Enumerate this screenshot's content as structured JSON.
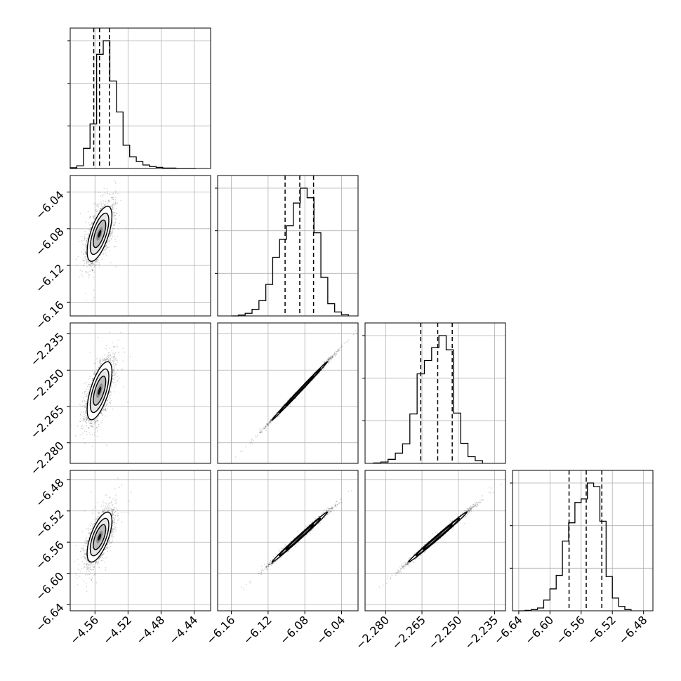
{
  "chart_data": {
    "type": "corner",
    "parameter_count": 4,
    "grid": true,
    "axes": [
      {
        "range": [
          -4.59,
          -4.42
        ],
        "ticks": [
          -4.56,
          -4.52,
          -4.48,
          -4.44
        ],
        "tick_labels": [
          "−4.56",
          "−4.52",
          "−4.48",
          "−4.44"
        ]
      },
      {
        "range": [
          -6.175,
          -6.022
        ],
        "ticks": [
          -6.16,
          -6.12,
          -6.08,
          -6.04
        ],
        "tick_labels": [
          "−6.16",
          "−6.12",
          "−6.08",
          "−6.04"
        ]
      },
      {
        "range": [
          -2.2885,
          -2.2305
        ],
        "ticks": [
          -2.28,
          -2.265,
          -2.25,
          -2.235
        ],
        "tick_labels": [
          "−2.280",
          "−2.265",
          "−2.250",
          "−2.235"
        ]
      },
      {
        "range": [
          -6.648,
          -6.468
        ],
        "ticks": [
          -6.64,
          -6.6,
          -6.56,
          -6.52,
          -6.48
        ],
        "tick_labels": [
          "−6.64",
          "−6.60",
          "−6.56",
          "−6.52",
          "−6.48"
        ]
      }
    ],
    "quantiles": [
      [
        -4.5615,
        -4.5545,
        -4.5425
      ],
      [
        -6.1015,
        -6.0855,
        -6.0705
      ],
      [
        -2.2655,
        -2.2585,
        -2.2525
      ],
      [
        -6.5755,
        -6.5535,
        -6.5335
      ]
    ],
    "histograms": [
      {
        "edges": [
          -4.59,
          -4.582,
          -4.574,
          -4.566,
          -4.558,
          -4.55,
          -4.542,
          -4.534,
          -4.526,
          -4.518,
          -4.51,
          -4.502,
          -4.494,
          -4.486,
          -4.478,
          -4.47,
          -4.462,
          -4.454,
          -4.446,
          -4.438
        ],
        "counts": [
          2,
          7,
          52,
          115,
          295,
          330,
          226,
          146,
          60,
          30,
          18,
          9,
          5,
          3,
          1,
          1,
          0,
          0,
          0
        ]
      },
      {
        "edges": [
          -6.16,
          -6.1525,
          -6.145,
          -6.1375,
          -6.13,
          -6.1225,
          -6.115,
          -6.1075,
          -6.1,
          -6.0925,
          -6.085,
          -6.0775,
          -6.07,
          -6.0625,
          -6.055,
          -6.0475,
          -6.04,
          -6.0325
        ],
        "counts": [
          0,
          2,
          6,
          15,
          35,
          72,
          134,
          175,
          206,
          258,
          292,
          270,
          190,
          88,
          28,
          9,
          3
        ]
      },
      {
        "edges": [
          -2.285,
          -2.282,
          -2.279,
          -2.276,
          -2.273,
          -2.27,
          -2.267,
          -2.264,
          -2.261,
          -2.258,
          -2.255,
          -2.252,
          -2.249,
          -2.246,
          -2.243,
          -2.24
        ],
        "counts": [
          1,
          3,
          9,
          23,
          44,
          111,
          201,
          231,
          260,
          287,
          255,
          113,
          45,
          15,
          6
        ]
      },
      {
        "edges": [
          -6.64,
          -6.632,
          -6.624,
          -6.616,
          -6.608,
          -6.6,
          -6.592,
          -6.584,
          -6.576,
          -6.568,
          -6.56,
          -6.552,
          -6.544,
          -6.536,
          -6.528,
          -6.52,
          -6.512,
          -6.504,
          -6.496
        ],
        "counts": [
          0,
          1,
          3,
          7,
          27,
          55,
          89,
          175,
          221,
          272,
          281,
          321,
          312,
          225,
          86,
          32,
          11,
          3
        ]
      }
    ],
    "joint_distributions": [
      {
        "x_param": 0,
        "y_param": 1,
        "center": [
          -4.5545,
          -6.0855
        ],
        "sd_x": 0.0075,
        "sd_y": 0.015,
        "correlation": 0.65
      },
      {
        "x_param": 0,
        "y_param": 2,
        "center": [
          -4.5545,
          -2.2585
        ],
        "sd_x": 0.0075,
        "sd_y": 0.006,
        "correlation": 0.65
      },
      {
        "x_param": 0,
        "y_param": 3,
        "center": [
          -4.5545,
          -6.5535
        ],
        "sd_x": 0.0075,
        "sd_y": 0.016,
        "correlation": 0.65
      },
      {
        "x_param": 1,
        "y_param": 2,
        "center": [
          -6.0855,
          -2.2585
        ],
        "sd_x": 0.015,
        "sd_y": 0.006,
        "correlation": 0.998
      },
      {
        "x_param": 1,
        "y_param": 3,
        "center": [
          -6.0855,
          -6.5535
        ],
        "sd_x": 0.015,
        "sd_y": 0.016,
        "correlation": 0.995
      },
      {
        "x_param": 2,
        "y_param": 3,
        "center": [
          -2.2585,
          -6.5535
        ],
        "sd_x": 0.006,
        "sd_y": 0.016,
        "correlation": 0.995
      }
    ],
    "contour_levels_sigma": [
      0.5,
      1.0,
      1.5,
      2.0
    ]
  }
}
